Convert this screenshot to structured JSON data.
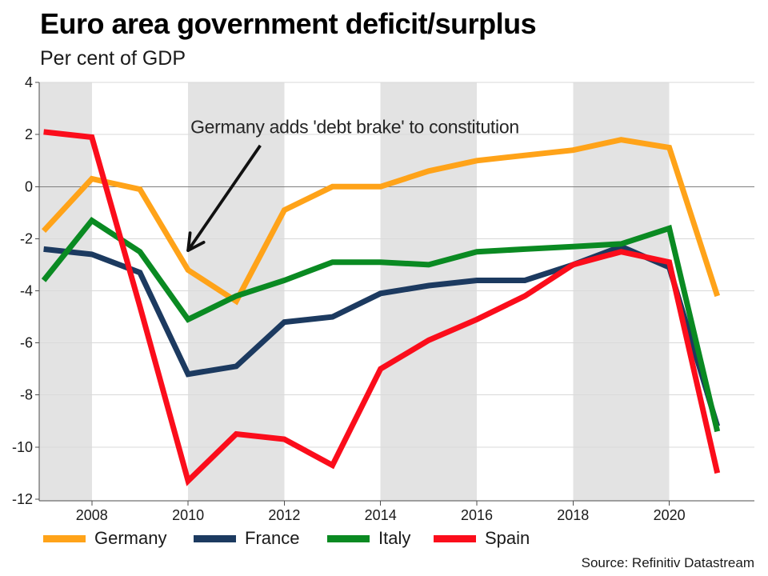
{
  "title": "Euro area government deficit/surplus",
  "subtitle": "Per cent of GDP",
  "source": "Source: Refinitiv Datastream",
  "chart_data": {
    "type": "line",
    "title": "Euro area government deficit/surplus",
    "ylabel": "Per cent of GDP",
    "x": [
      2007,
      2008,
      2009,
      2010,
      2011,
      2012,
      2013,
      2014,
      2015,
      2016,
      2017,
      2018,
      2019,
      2020,
      2021
    ],
    "series": [
      {
        "name": "Germany",
        "color": "#FFA319",
        "values": [
          -1.7,
          0.3,
          -0.1,
          -3.2,
          -4.4,
          -0.9,
          0.0,
          0.0,
          0.6,
          1.0,
          1.2,
          1.4,
          1.8,
          1.5,
          -4.2
        ]
      },
      {
        "name": "France",
        "color": "#1C3A60",
        "values": [
          -2.4,
          -2.6,
          -3.3,
          -7.2,
          -6.9,
          -5.2,
          -5.0,
          -4.1,
          -3.8,
          -3.6,
          -3.6,
          -3.0,
          -2.3,
          -3.1,
          -9.2
        ]
      },
      {
        "name": "Italy",
        "color": "#0A8A22",
        "values": [
          -3.6,
          -1.3,
          -2.5,
          -5.1,
          -4.2,
          -3.6,
          -2.9,
          -2.9,
          -3.0,
          -2.5,
          -2.4,
          -2.3,
          -2.2,
          -1.6,
          -9.4
        ]
      },
      {
        "name": "Spain",
        "color": "#FB0D1B",
        "values": [
          2.1,
          1.9,
          -4.6,
          -11.3,
          -9.5,
          -9.7,
          -10.7,
          -7.0,
          -5.9,
          -5.1,
          -4.2,
          -3.0,
          -2.5,
          -2.9,
          -11.0
        ]
      }
    ],
    "ylim": [
      -12,
      4
    ],
    "yticks": [
      4,
      2,
      0,
      -2,
      -4,
      -6,
      -8,
      -10,
      -12
    ],
    "xticks": [
      2008,
      2010,
      2012,
      2014,
      2016,
      2018,
      2020
    ],
    "shaded_bands": [
      [
        2006.9,
        2008
      ],
      [
        2010,
        2012
      ],
      [
        2014,
        2016
      ],
      [
        2018,
        2020
      ]
    ],
    "grid": true,
    "legend_position": "bottom",
    "annotation": {
      "text": "Germany adds 'debt brake' to constitution",
      "text_pos": [
        2010.05,
        2.05
      ],
      "arrow_start": [
        2011.5,
        1.58
      ],
      "arrow_end": [
        2010.0,
        -2.45
      ]
    },
    "styles": {
      "band_color": "#E3E3E3",
      "grid_color": "#D9D9D9",
      "zero_line_color": "#7F7F7F",
      "axis_color": "#4D4D4D",
      "text_color": "#1A1A1A",
      "annotation_color": "#111111"
    }
  }
}
